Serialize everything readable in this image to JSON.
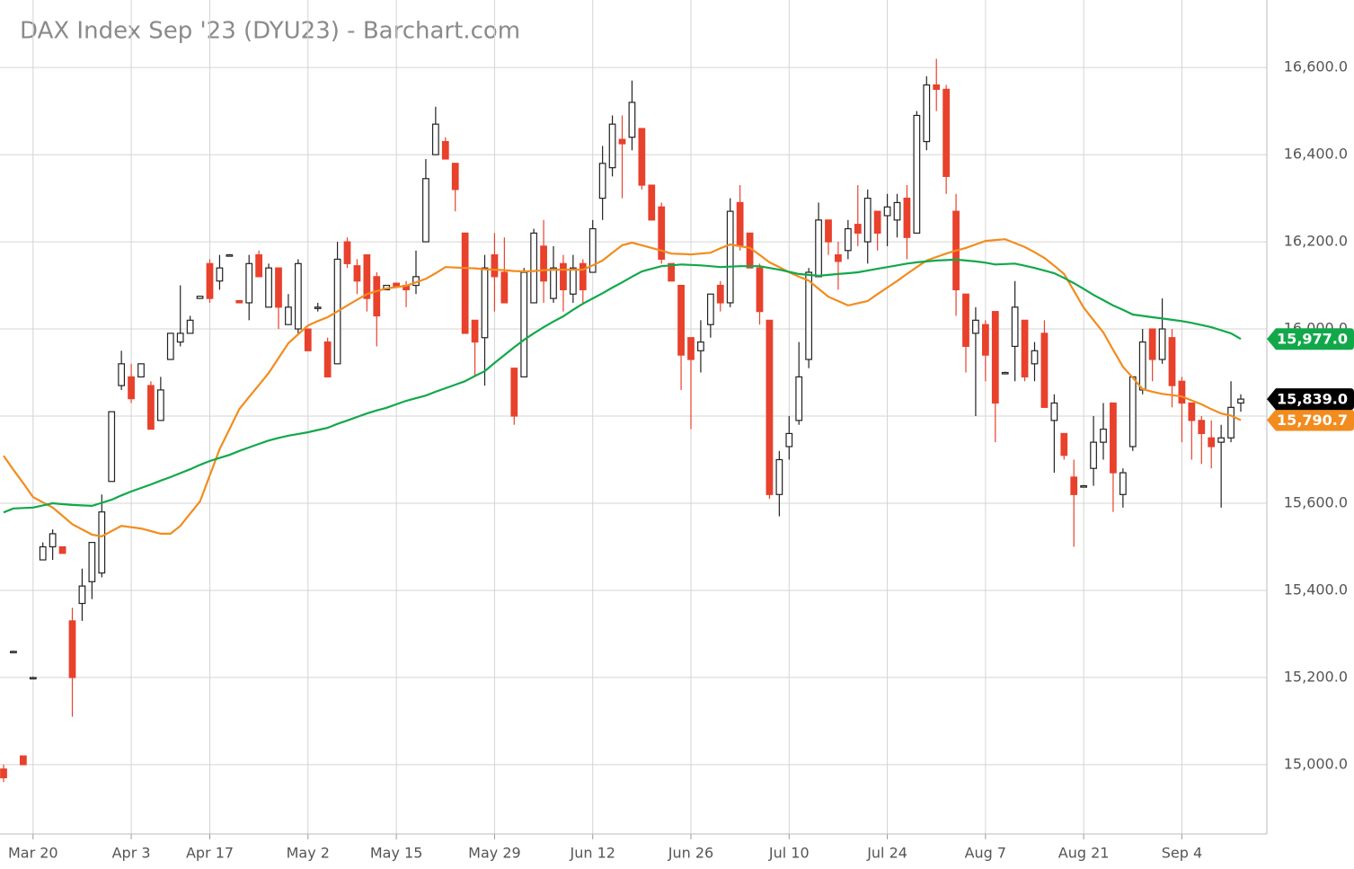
{
  "chart_data": {
    "type": "candlestick",
    "title": "DAX Index Sep '23 (DYU23) - Barchart.com",
    "categories": [
      null,
      null,
      null,
      "Mar 20",
      null,
      null,
      null,
      null,
      null,
      null,
      null,
      null,
      null,
      "Apr 3",
      null,
      null,
      null,
      null,
      null,
      null,
      null,
      "Apr 17",
      null,
      null,
      null,
      null,
      null,
      null,
      null,
      null,
      null,
      "May 2",
      null,
      null,
      null,
      null,
      null,
      null,
      null,
      null,
      "May 15",
      null,
      null,
      null,
      null,
      null,
      null,
      null,
      null,
      null,
      "May 29",
      null,
      null,
      null,
      null,
      null,
      null,
      null,
      null,
      null,
      "Jun 12",
      null,
      null,
      null,
      null,
      null,
      null,
      null,
      null,
      null,
      "Jun 26",
      null,
      null,
      null,
      null,
      null,
      null,
      null,
      null,
      null,
      "Jul 10",
      null,
      null,
      null,
      null,
      null,
      null,
      null,
      null,
      null,
      "Jul 24",
      null,
      null,
      null,
      null,
      null,
      null,
      null,
      null,
      null,
      "Aug 7",
      null,
      null,
      null,
      null,
      null,
      null,
      null,
      null,
      null,
      "Aug 21",
      null,
      null,
      null,
      null,
      null,
      null,
      null,
      null,
      null,
      "Sep 4",
      null,
      null,
      null,
      null,
      null,
      null
    ],
    "open": [
      14990,
      15260,
      15020,
      15200,
      15470,
      15500,
      15500,
      15330,
      15370,
      15420,
      15440,
      15650,
      15870,
      15890,
      15890,
      15870,
      15790,
      15930,
      15970,
      15990,
      16070,
      16150,
      16110,
      16170,
      16065,
      16060,
      16170,
      16050,
      16140,
      16010,
      16000,
      16000,
      16050,
      15970,
      15920,
      16200,
      16145,
      16170,
      16120,
      16090,
      16105,
      16100,
      16100,
      16200,
      16400,
      16430,
      16380,
      16220,
      16020,
      15980,
      16170,
      16130,
      15910,
      15890,
      16060,
      16190,
      16070,
      16150,
      16080,
      16150,
      16130,
      16300,
      16370,
      16435,
      16440,
      16460,
      16330,
      16280,
      16150,
      16100,
      15980,
      15950,
      16010,
      16100,
      16060,
      16290,
      16220,
      16140,
      16020,
      15620,
      15730,
      15790,
      15930,
      16120,
      16250,
      16170,
      16180,
      16240,
      16200,
      16270,
      16260,
      16250,
      16300,
      16220,
      16430,
      16560,
      16550,
      16270,
      16080,
      15990,
      16010,
      16040,
      15900,
      15960,
      16020,
      15920,
      15990,
      15790,
      15760,
      15660,
      15640,
      15680,
      15740,
      15830,
      15620,
      15730,
      15860,
      16000,
      15930,
      15980,
      15880,
      15830,
      15790,
      15750,
      15740,
      15750,
      15830
    ],
    "high": [
      15000,
      15262,
      15020,
      15202,
      15510,
      15540,
      15500,
      15360,
      15450,
      15510,
      15620,
      15810,
      15950,
      15920,
      15920,
      15880,
      15890,
      15990,
      16100,
      16030,
      16075,
      16160,
      16170,
      16172,
      16065,
      16170,
      16180,
      16150,
      16140,
      16080,
      16160,
      16000,
      16060,
      15980,
      16200,
      16210,
      16160,
      16170,
      16130,
      16100,
      16105,
      16110,
      16180,
      16390,
      16510,
      16440,
      16380,
      16220,
      16020,
      16170,
      16220,
      16210,
      15910,
      16140,
      16230,
      16250,
      16190,
      16170,
      16170,
      16160,
      16250,
      16420,
      16490,
      16490,
      16570,
      16460,
      16330,
      16290,
      16150,
      16100,
      15980,
      16020,
      16080,
      16110,
      16300,
      16330,
      16220,
      16150,
      16020,
      15720,
      15800,
      15970,
      16140,
      16290,
      16250,
      16200,
      16250,
      16330,
      16320,
      16270,
      16310,
      16310,
      16330,
      16500,
      16580,
      16620,
      16560,
      16310,
      16080,
      16050,
      16020,
      16040,
      15902,
      16110,
      16020,
      15970,
      16020,
      15850,
      15760,
      15700,
      15642,
      15800,
      15830,
      15830,
      15680,
      15890,
      16000,
      16000,
      16070,
      16000,
      15890,
      15830,
      15800,
      15790,
      15780,
      15880,
      15850
    ],
    "low": [
      14960,
      15258,
      15000,
      15198,
      15470,
      15470,
      15485,
      15110,
      15330,
      15380,
      15430,
      15650,
      15860,
      15830,
      15890,
      15770,
      15790,
      15930,
      15960,
      15990,
      16070,
      16060,
      16090,
      16168,
      16060,
      16020,
      16120,
      16050,
      16000,
      16010,
      15990,
      15950,
      16040,
      15890,
      15920,
      16140,
      16080,
      16040,
      15960,
      16090,
      16098,
      16050,
      16080,
      16200,
      16400,
      16390,
      16270,
      15990,
      15890,
      15870,
      16040,
      16060,
      15780,
      15890,
      16060,
      16060,
      16060,
      16040,
      16060,
      16060,
      16130,
      16250,
      16350,
      16300,
      16410,
      16320,
      16250,
      16150,
      16110,
      15860,
      15770,
      15900,
      15980,
      16040,
      16050,
      16180,
      16140,
      16010,
      15610,
      15570,
      15700,
      15780,
      15910,
      16120,
      16170,
      16090,
      16160,
      16190,
      16150,
      16180,
      16190,
      16210,
      16160,
      16220,
      16410,
      16500,
      16310,
      16030,
      15900,
      15800,
      15880,
      15740,
      15898,
      15880,
      15880,
      15880,
      15820,
      15670,
      15700,
      15500,
      15638,
      15640,
      15700,
      15580,
      15590,
      15720,
      15850,
      15880,
      15920,
      15820,
      15740,
      15700,
      15690,
      15680,
      15590,
      15740,
      15810
    ],
    "close": [
      14970,
      15260,
      15000,
      15200,
      15500,
      15530,
      15485,
      15200,
      15410,
      15510,
      15580,
      15810,
      15920,
      15840,
      15920,
      15770,
      15860,
      15990,
      15990,
      16020,
      16075,
      16070,
      16140,
      16170,
      16060,
      16150,
      16120,
      16140,
      16050,
      16050,
      16150,
      15950,
      16050,
      15890,
      16160,
      16150,
      16110,
      16070,
      16030,
      16100,
      16098,
      16090,
      16120,
      16345,
      16470,
      16390,
      16320,
      15990,
      15970,
      16140,
      16120,
      16060,
      15800,
      16130,
      16220,
      16110,
      16140,
      16090,
      16140,
      16090,
      16230,
      16380,
      16470,
      16425,
      16520,
      16330,
      16250,
      16160,
      16110,
      15940,
      15930,
      15970,
      16080,
      16060,
      16270,
      16190,
      16140,
      16040,
      15620,
      15700,
      15760,
      15890,
      16130,
      16250,
      16200,
      16155,
      16230,
      16220,
      16300,
      16220,
      16280,
      16290,
      16210,
      16490,
      16560,
      16550,
      16350,
      16090,
      15960,
      16020,
      15940,
      15830,
      15900,
      16050,
      15890,
      15950,
      15820,
      15830,
      15710,
      15620,
      15640,
      15740,
      15770,
      15670,
      15670,
      15890,
      15970,
      15930,
      16000,
      15870,
      15830,
      15790,
      15760,
      15730,
      15750,
      15820,
      15839
    ],
    "up_color": "#222222",
    "down_color": "#e8412c",
    "lines": [
      {
        "color": "#f28c1e",
        "values": [
          15709,
          15677,
          15646,
          15614,
          15602,
          15590,
          15571,
          15552,
          15540,
          15528,
          15524,
          15536,
          15548,
          15545,
          15542,
          15536,
          15530,
          15530,
          15548,
          15576,
          15604,
          15664,
          15724,
          15770,
          15816,
          15844,
          15871,
          15899,
          15933,
          15967,
          15988,
          16008,
          16018,
          16027,
          16040,
          16054,
          16067,
          16080,
          16087,
          16093,
          16096,
          16099,
          16107,
          16115,
          16128,
          16142,
          16141,
          16140,
          16139,
          16137,
          16136,
          16135,
          16133,
          16132,
          16133,
          16135,
          16136,
          16136,
          16136,
          16136,
          16146,
          16157,
          16175,
          16192,
          16198,
          16192,
          16186,
          16180,
          16173,
          16172,
          16171,
          16173,
          16175,
          16185,
          16194,
          16190,
          16186,
          16170,
          16153,
          16142,
          16130,
          16120,
          16111,
          16092,
          16074,
          16064,
          16054,
          16059,
          16064,
          16080,
          16095,
          16110,
          16126,
          16142,
          16157,
          16165,
          16173,
          16180,
          16186,
          16194,
          16202,
          16204,
          16206,
          16197,
          16188,
          16176,
          16163,
          16145,
          16126,
          16088,
          16049,
          16020,
          15992,
          15952,
          15913,
          15888,
          15862,
          15856,
          15851,
          15848,
          15845,
          15836,
          15827,
          15816,
          15806,
          15801,
          15790.7
        ]
      },
      {
        "color": "#12a84a",
        "values": [
          15579,
          15588,
          15589,
          15590,
          15595,
          15600,
          15598,
          15596,
          15595,
          15594,
          15601,
          15608,
          15618,
          15627,
          15635,
          15643,
          15652,
          15660,
          15669,
          15678,
          15688,
          15697,
          15704,
          15711,
          15720,
          15728,
          15736,
          15744,
          15750,
          15755,
          15759,
          15763,
          15768,
          15773,
          15782,
          15790,
          15798,
          15806,
          15813,
          15819,
          15827,
          15835,
          15841,
          15847,
          15856,
          15864,
          15872,
          15880,
          15892,
          15903,
          15922,
          15940,
          15958,
          15975,
          15990,
          16004,
          16017,
          16029,
          16044,
          16058,
          16070,
          16082,
          16095,
          16107,
          16120,
          16132,
          16138,
          16144,
          16146,
          16148,
          16147,
          16146,
          16144,
          16142,
          16143,
          16144,
          16144,
          16144,
          16140,
          16136,
          16131,
          16126,
          16124,
          16122,
          16124,
          16126,
          16128,
          16130,
          16134,
          16138,
          16142,
          16146,
          16150,
          16153,
          16155,
          16157,
          16158,
          16159,
          16157,
          16155,
          16152,
          16148,
          16149,
          16150,
          16145,
          16140,
          16134,
          16128,
          16117,
          16105,
          16092,
          16078,
          16066,
          16054,
          16044,
          16033,
          16030,
          16027,
          16024,
          16021,
          16018,
          16014,
          16009,
          16004,
          15997,
          15990,
          15977
        ]
      }
    ],
    "price_labels": [
      {
        "value": 15790.7,
        "label": "15,790.7",
        "color": "#f28c1e"
      },
      {
        "value": 15977,
        "label": "15,977.0",
        "color": "#12a84a"
      },
      {
        "value": 15839,
        "label": "15,839.0",
        "color": "#000000"
      }
    ],
    "ylim": [
      14841,
      16724
    ],
    "yticks": [
      {
        "value": 15000,
        "label": "15,000.0"
      },
      {
        "value": 15200,
        "label": "15,200.0"
      },
      {
        "value": 15400,
        "label": "15,400.0"
      },
      {
        "value": 15600,
        "label": "15,600.0"
      },
      {
        "value": 15800,
        "label": "15,800.0"
      },
      {
        "value": 16000,
        "label": "16,000.0"
      },
      {
        "value": 16200,
        "label": "16,200.0"
      },
      {
        "value": 16400,
        "label": "16,400.0"
      },
      {
        "value": 16600,
        "label": "16,600.0"
      }
    ],
    "grid": true
  }
}
